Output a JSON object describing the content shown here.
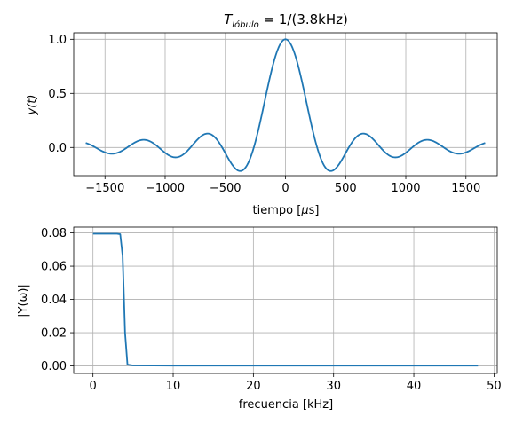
{
  "chart_data": [
    {
      "type": "line",
      "title": "T_lóbulo = 1/(3.8kHz)",
      "title_main": "T",
      "title_sub": "lóbulo",
      "title_rest": " = 1/(3.8kHz)",
      "xlabel": "tiempo [μs]",
      "xlabel_main": "tiempo [",
      "xlabel_mu": "μ",
      "xlabel_end": "s]",
      "ylabel": "y(t)",
      "xlim": [
        -1760,
        1760
      ],
      "ylim": [
        -0.26,
        1.06
      ],
      "x_ticks": [
        -1500,
        -1000,
        -500,
        0,
        500,
        1000,
        1500
      ],
      "x_tick_labels": [
        "−1500",
        "−1000",
        "−500",
        "0",
        "500",
        "1000",
        "1500"
      ],
      "y_ticks": [
        0.0,
        0.5,
        1.0
      ],
      "y_tick_labels": [
        "0.0",
        "0.5",
        "1.0"
      ],
      "grid": true,
      "series": [
        {
          "color": "#1f77b4",
          "function": "sinc",
          "main_lobe_frequency_khz": 3.8,
          "x_range": [
            -1660,
            1660
          ],
          "peak": 1.0
        }
      ]
    },
    {
      "type": "line",
      "title": "",
      "xlabel": "frecuencia [kHz]",
      "ylabel": "|Y(ω)|",
      "xlim": [
        -2.4,
        50.4
      ],
      "ylim": [
        -0.0045,
        0.0835
      ],
      "x_ticks": [
        0,
        10,
        20,
        30,
        40,
        50
      ],
      "x_tick_labels": [
        "0",
        "10",
        "20",
        "30",
        "40",
        "50"
      ],
      "y_ticks": [
        0.0,
        0.02,
        0.04,
        0.06,
        0.08
      ],
      "y_tick_labels": [
        "0.00",
        "0.02",
        "0.04",
        "0.06",
        "0.08"
      ],
      "grid": true,
      "series": [
        {
          "color": "#1f77b4",
          "x": [
            0,
            1,
            2,
            3,
            3.4,
            3.7,
            4.0,
            4.3,
            5,
            10,
            20,
            30,
            40,
            48
          ],
          "y": [
            0.0795,
            0.0795,
            0.0795,
            0.0795,
            0.0792,
            0.066,
            0.02,
            0.0008,
            0.0003,
            0.0002,
            0.0002,
            0.0002,
            0.0002,
            0.0002
          ]
        }
      ]
    }
  ]
}
